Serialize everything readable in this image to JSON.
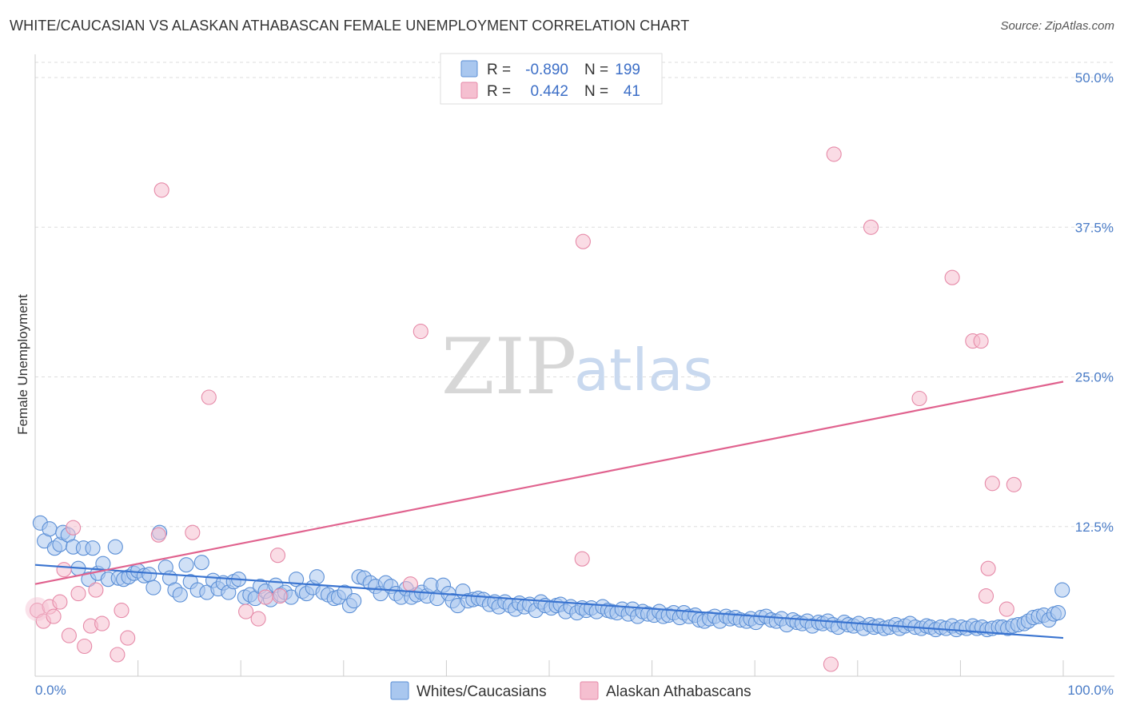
{
  "header": {
    "title": "WHITE/CAUCASIAN VS ALASKAN ATHABASCAN FEMALE UNEMPLOYMENT CORRELATION CHART",
    "source": "Source: ZipAtlas.com"
  },
  "watermark": {
    "part1": "ZIP",
    "part2": "atlas"
  },
  "colors": {
    "blue_fill": "#a9c7ef",
    "blue_stroke": "#5b8fd6",
    "blue_line": "#3a74d0",
    "pink_fill": "#f5bfd0",
    "pink_stroke": "#e68aa8",
    "pink_line": "#e0628e",
    "grid": "#dddddd",
    "tick_label": "#4a7cc7"
  },
  "legend": {
    "rows": [
      {
        "r_label": "R =",
        "r_value": "-0.890",
        "n_label": "N =",
        "n_value": "199"
      },
      {
        "r_label": "R =",
        "r_value": "0.442",
        "n_label": "N =",
        "n_value": "41"
      }
    ]
  },
  "chart_data": {
    "type": "scatter",
    "title": "WHITE/CAUCASIAN VS ALASKAN ATHABASCAN FEMALE UNEMPLOYMENT CORRELATION CHART",
    "xlabel": "",
    "ylabel": "Female Unemployment",
    "xlim": [
      0,
      100
    ],
    "ylim": [
      0,
      50
    ],
    "x_tick_labels": [
      "0.0%",
      "100.0%"
    ],
    "y_ticks": [
      12.5,
      25.0,
      37.5,
      50.0
    ],
    "y_tick_labels": [
      "12.5%",
      "25.0%",
      "37.5%",
      "50.0%"
    ],
    "grid": true,
    "legend_position": "top-center",
    "series": [
      {
        "name": "Whites/Caucasians",
        "color": "#a9c7ef",
        "r": -0.89,
        "n": 199,
        "trend": {
          "x": [
            0,
            100
          ],
          "y": [
            9.3,
            3.2
          ]
        },
        "points": [
          [
            0.5,
            12.8
          ],
          [
            0.9,
            11.3
          ],
          [
            1.4,
            12.3
          ],
          [
            1.9,
            10.7
          ],
          [
            2.4,
            11.0
          ],
          [
            2.7,
            12.0
          ],
          [
            3.2,
            11.8
          ],
          [
            3.7,
            10.8
          ],
          [
            4.2,
            9.0
          ],
          [
            4.7,
            10.7
          ],
          [
            5.2,
            8.1
          ],
          [
            5.6,
            10.7
          ],
          [
            6.1,
            8.6
          ],
          [
            6.6,
            9.4
          ],
          [
            7.1,
            8.1
          ],
          [
            7.8,
            10.8
          ],
          [
            8.1,
            8.2
          ],
          [
            8.6,
            8.1
          ],
          [
            9.1,
            8.3
          ],
          [
            9.6,
            8.6
          ],
          [
            10.0,
            8.8
          ],
          [
            10.6,
            8.4
          ],
          [
            11.1,
            8.5
          ],
          [
            11.5,
            7.4
          ],
          [
            12.1,
            12.0
          ],
          [
            12.7,
            9.1
          ],
          [
            13.1,
            8.2
          ],
          [
            13.6,
            7.2
          ],
          [
            14.1,
            6.8
          ],
          [
            14.7,
            9.3
          ],
          [
            15.1,
            7.9
          ],
          [
            15.8,
            7.2
          ],
          [
            16.2,
            9.5
          ],
          [
            16.7,
            7.0
          ],
          [
            17.3,
            8.0
          ],
          [
            17.8,
            7.3
          ],
          [
            18.3,
            7.8
          ],
          [
            18.8,
            7.0
          ],
          [
            19.3,
            7.9
          ],
          [
            19.8,
            8.1
          ],
          [
            20.4,
            6.6
          ],
          [
            20.9,
            6.8
          ],
          [
            21.4,
            6.5
          ],
          [
            21.9,
            7.5
          ],
          [
            22.4,
            7.1
          ],
          [
            22.9,
            6.4
          ],
          [
            23.4,
            7.6
          ],
          [
            23.9,
            6.8
          ],
          [
            24.3,
            7.0
          ],
          [
            24.9,
            6.6
          ],
          [
            25.4,
            8.1
          ],
          [
            26.0,
            7.1
          ],
          [
            26.4,
            6.9
          ],
          [
            27.0,
            7.4
          ],
          [
            27.4,
            8.3
          ],
          [
            28.0,
            7.0
          ],
          [
            28.5,
            6.8
          ],
          [
            29.1,
            6.5
          ],
          [
            29.5,
            6.6
          ],
          [
            30.1,
            7.0
          ],
          [
            30.6,
            5.9
          ],
          [
            31.0,
            6.3
          ],
          [
            31.5,
            8.3
          ],
          [
            32.0,
            8.2
          ],
          [
            32.6,
            7.8
          ],
          [
            33.1,
            7.5
          ],
          [
            33.6,
            6.9
          ],
          [
            34.1,
            7.8
          ],
          [
            34.6,
            7.5
          ],
          [
            35.1,
            6.9
          ],
          [
            35.6,
            6.6
          ],
          [
            36.1,
            7.3
          ],
          [
            36.6,
            6.6
          ],
          [
            37.1,
            6.8
          ],
          [
            37.6,
            7.0
          ],
          [
            38.1,
            6.7
          ],
          [
            38.5,
            7.6
          ],
          [
            39.1,
            6.5
          ],
          [
            39.7,
            7.6
          ],
          [
            40.2,
            6.9
          ],
          [
            40.6,
            6.3
          ],
          [
            41.1,
            5.9
          ],
          [
            41.6,
            7.1
          ],
          [
            42.1,
            6.3
          ],
          [
            42.6,
            6.4
          ],
          [
            43.1,
            6.5
          ],
          [
            43.6,
            6.4
          ],
          [
            44.2,
            6.0
          ],
          [
            44.7,
            6.2
          ],
          [
            45.1,
            5.8
          ],
          [
            45.7,
            6.2
          ],
          [
            46.2,
            5.9
          ],
          [
            46.7,
            5.6
          ],
          [
            47.1,
            6.1
          ],
          [
            47.6,
            5.8
          ],
          [
            48.1,
            6.0
          ],
          [
            48.7,
            5.5
          ],
          [
            49.2,
            6.2
          ],
          [
            49.6,
            5.9
          ],
          [
            50.2,
            5.7
          ],
          [
            50.7,
            5.9
          ],
          [
            51.1,
            6.0
          ],
          [
            51.6,
            5.4
          ],
          [
            52.1,
            5.8
          ],
          [
            52.7,
            5.3
          ],
          [
            53.2,
            5.7
          ],
          [
            53.6,
            5.5
          ],
          [
            54.1,
            5.7
          ],
          [
            54.6,
            5.4
          ],
          [
            55.2,
            5.8
          ],
          [
            55.7,
            5.5
          ],
          [
            56.1,
            5.4
          ],
          [
            56.6,
            5.3
          ],
          [
            57.1,
            5.6
          ],
          [
            57.7,
            5.2
          ],
          [
            58.1,
            5.6
          ],
          [
            58.6,
            5.0
          ],
          [
            59.1,
            5.4
          ],
          [
            59.6,
            5.2
          ],
          [
            60.2,
            5.1
          ],
          [
            60.7,
            5.4
          ],
          [
            61.1,
            5.0
          ],
          [
            61.6,
            5.1
          ],
          [
            62.1,
            5.3
          ],
          [
            62.7,
            4.9
          ],
          [
            63.1,
            5.3
          ],
          [
            63.6,
            5.0
          ],
          [
            64.2,
            5.1
          ],
          [
            64.6,
            4.7
          ],
          [
            65.1,
            4.6
          ],
          [
            65.6,
            4.8
          ],
          [
            66.1,
            5.0
          ],
          [
            66.6,
            4.6
          ],
          [
            67.2,
            5.0
          ],
          [
            67.6,
            4.8
          ],
          [
            68.1,
            4.9
          ],
          [
            68.6,
            4.7
          ],
          [
            69.2,
            4.6
          ],
          [
            69.6,
            4.8
          ],
          [
            70.1,
            4.5
          ],
          [
            70.6,
            4.9
          ],
          [
            71.1,
            5.0
          ],
          [
            71.6,
            4.7
          ],
          [
            72.1,
            4.6
          ],
          [
            72.6,
            4.8
          ],
          [
            73.1,
            4.3
          ],
          [
            73.7,
            4.7
          ],
          [
            74.1,
            4.5
          ],
          [
            74.6,
            4.4
          ],
          [
            75.1,
            4.6
          ],
          [
            75.6,
            4.2
          ],
          [
            76.2,
            4.5
          ],
          [
            76.6,
            4.4
          ],
          [
            77.1,
            4.6
          ],
          [
            77.6,
            4.3
          ],
          [
            78.1,
            4.1
          ],
          [
            78.7,
            4.5
          ],
          [
            79.1,
            4.3
          ],
          [
            79.6,
            4.2
          ],
          [
            80.1,
            4.4
          ],
          [
            80.6,
            4.0
          ],
          [
            81.2,
            4.3
          ],
          [
            81.6,
            4.1
          ],
          [
            82.1,
            4.2
          ],
          [
            82.6,
            4.0
          ],
          [
            83.1,
            4.1
          ],
          [
            83.7,
            4.3
          ],
          [
            84.1,
            4.0
          ],
          [
            84.6,
            4.2
          ],
          [
            85.1,
            4.4
          ],
          [
            85.6,
            4.1
          ],
          [
            86.2,
            4.0
          ],
          [
            86.7,
            4.2
          ],
          [
            87.1,
            4.1
          ],
          [
            87.6,
            3.9
          ],
          [
            88.1,
            4.1
          ],
          [
            88.6,
            4.0
          ],
          [
            89.2,
            4.2
          ],
          [
            89.6,
            3.9
          ],
          [
            90.1,
            4.1
          ],
          [
            90.6,
            4.0
          ],
          [
            91.2,
            4.2
          ],
          [
            91.6,
            4.0
          ],
          [
            92.1,
            4.1
          ],
          [
            92.6,
            3.9
          ],
          [
            93.1,
            4.0
          ],
          [
            93.7,
            4.1
          ],
          [
            94.1,
            4.1
          ],
          [
            94.6,
            4.0
          ],
          [
            95.1,
            4.2
          ],
          [
            95.6,
            4.3
          ],
          [
            96.2,
            4.4
          ],
          [
            96.6,
            4.6
          ],
          [
            97.1,
            4.9
          ],
          [
            97.6,
            5.0
          ],
          [
            98.1,
            5.1
          ],
          [
            98.6,
            4.7
          ],
          [
            99.1,
            5.2
          ],
          [
            99.5,
            5.3
          ],
          [
            99.9,
            7.2
          ]
        ]
      },
      {
        "name": "Alaskan Athabascans",
        "color": "#f5bfd0",
        "r": 0.442,
        "n": 41,
        "trend": {
          "x": [
            0,
            100
          ],
          "y": [
            7.7,
            24.6
          ]
        },
        "points": [
          [
            0.2,
            5.5
          ],
          [
            0.8,
            4.6
          ],
          [
            1.4,
            5.8
          ],
          [
            1.8,
            5.0
          ],
          [
            2.4,
            6.2
          ],
          [
            2.8,
            8.9
          ],
          [
            3.3,
            3.4
          ],
          [
            3.7,
            12.4
          ],
          [
            4.2,
            6.9
          ],
          [
            4.8,
            2.5
          ],
          [
            5.4,
            4.2
          ],
          [
            5.9,
            7.2
          ],
          [
            6.5,
            4.4
          ],
          [
            8.0,
            1.8
          ],
          [
            8.4,
            5.5
          ],
          [
            9.0,
            3.2
          ],
          [
            12.0,
            11.8
          ],
          [
            12.3,
            40.6
          ],
          [
            15.3,
            12.0
          ],
          [
            16.9,
            23.3
          ],
          [
            20.5,
            5.4
          ],
          [
            21.7,
            4.8
          ],
          [
            22.4,
            6.6
          ],
          [
            23.6,
            10.1
          ],
          [
            23.8,
            6.7
          ],
          [
            37.5,
            28.8
          ],
          [
            36.5,
            7.7
          ],
          [
            53.3,
            36.3
          ],
          [
            53.2,
            9.8
          ],
          [
            77.4,
            1.0
          ],
          [
            77.7,
            43.6
          ],
          [
            81.3,
            37.5
          ],
          [
            86.0,
            23.2
          ],
          [
            89.2,
            33.3
          ],
          [
            91.2,
            28.0
          ],
          [
            92.0,
            28.0
          ],
          [
            92.7,
            9.0
          ],
          [
            94.5,
            5.6
          ],
          [
            93.1,
            16.1
          ],
          [
            95.2,
            16.0
          ],
          [
            92.5,
            6.7
          ]
        ]
      }
    ]
  },
  "bottom_legend": {
    "items": [
      {
        "label": "Whites/Caucasians"
      },
      {
        "label": "Alaskan Athabascans"
      }
    ]
  }
}
